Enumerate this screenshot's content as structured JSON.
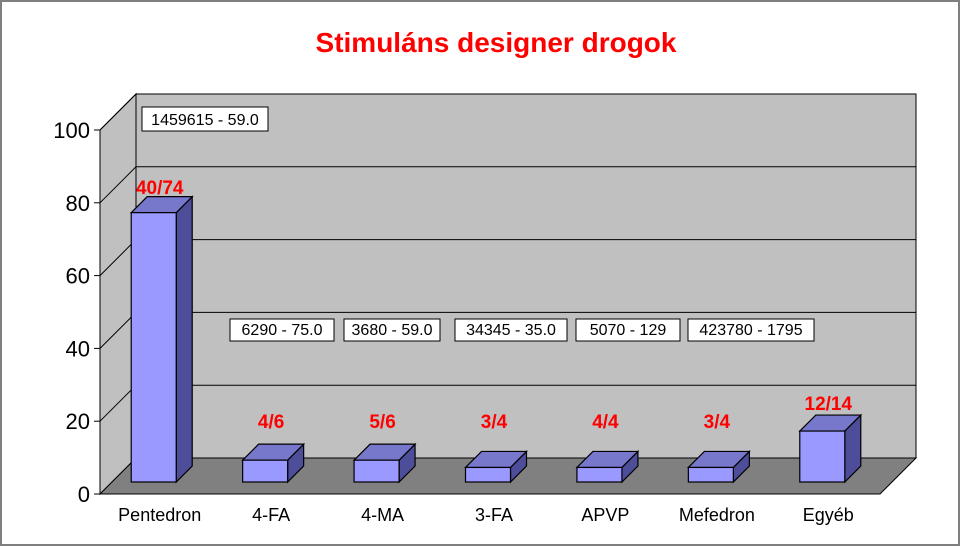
{
  "chart_data": {
    "type": "bar",
    "title": "Stimuláns designer drogok",
    "categories": [
      "Pentedron",
      "4-FA",
      "4-MA",
      "3-FA",
      "APVP",
      "Mefedron",
      "Egyéb"
    ],
    "values": [
      74,
      6,
      6,
      4,
      4,
      4,
      14
    ],
    "data_labels": [
      "40/74",
      "4/6",
      "5/6",
      "3/4",
      "4/4",
      "3/4",
      "12/14"
    ],
    "annotations": [
      "1459615 - 59.0",
      "6290 - 75.0",
      "3680 - 59.0",
      "34345 - 35.0",
      "5070 - 129",
      "423780 - 1795"
    ],
    "yticks": [
      "0",
      "20",
      "40",
      "60",
      "80",
      "100"
    ],
    "ylim": [
      0,
      100
    ],
    "grid": true,
    "legend": "none",
    "colors": {
      "bar_front": "#9999ff",
      "bar_side": "#4d4d99",
      "bar_top": "#7777cc",
      "wall": "#c0c0c0",
      "floor": "#808080",
      "label": "#ff0000"
    }
  }
}
